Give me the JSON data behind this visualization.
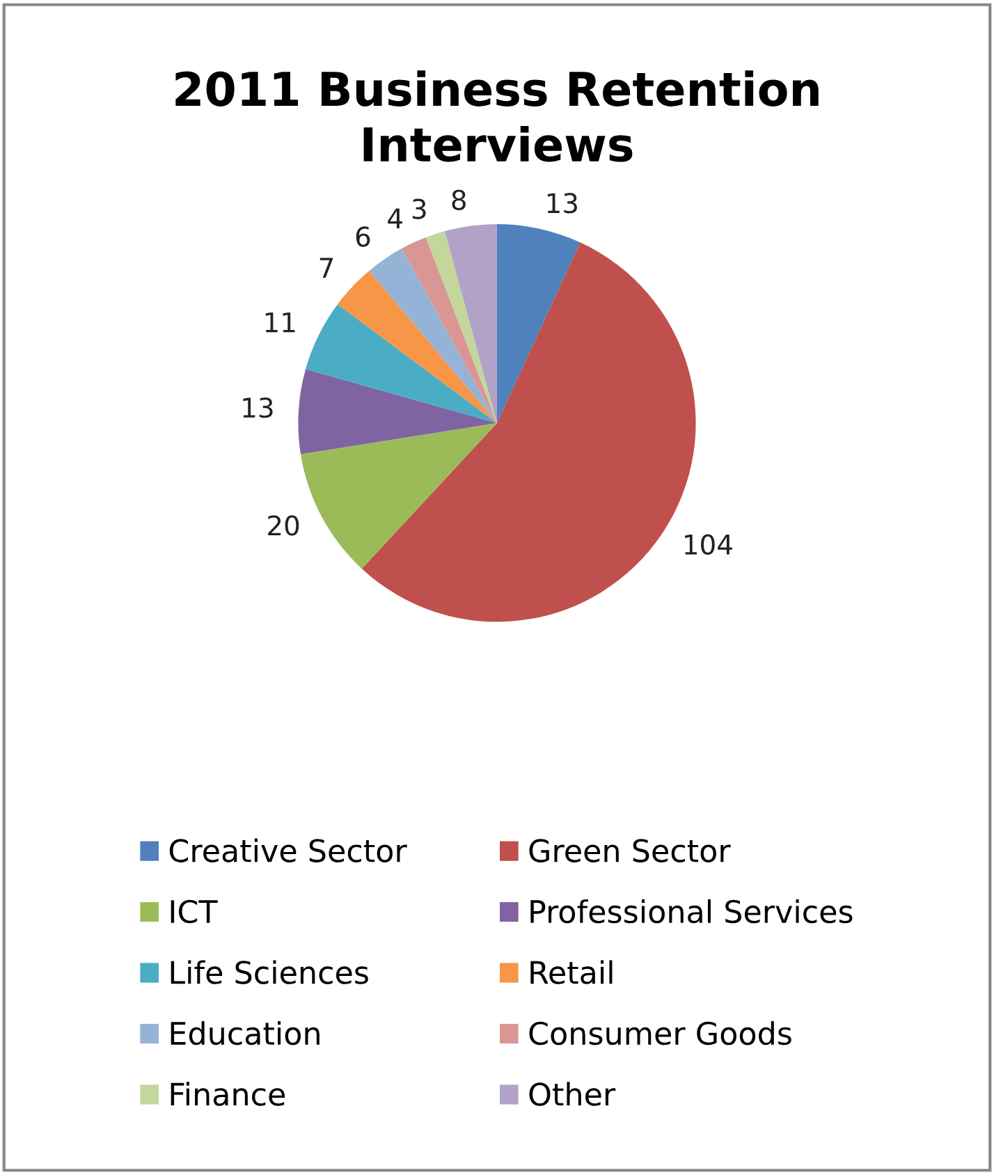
{
  "chart_data": {
    "type": "pie",
    "title": "2011 Business Retention\nInterviews",
    "categories": [
      "Creative Sector",
      "Green Sector",
      "ICT",
      "Professional Services",
      "Life Sciences",
      "Retail",
      "Education",
      "Consumer Goods",
      "Finance",
      "Other"
    ],
    "values": [
      13,
      104,
      20,
      13,
      11,
      7,
      6,
      4,
      3,
      8
    ],
    "colors": [
      "#4f81bd",
      "#c0504d",
      "#9bbb59",
      "#8064a2",
      "#4bacc6",
      "#f79646",
      "#95b3d7",
      "#d99694",
      "#c3d69b",
      "#b3a2c7"
    ],
    "data_labels": true,
    "legend": "bottom"
  }
}
